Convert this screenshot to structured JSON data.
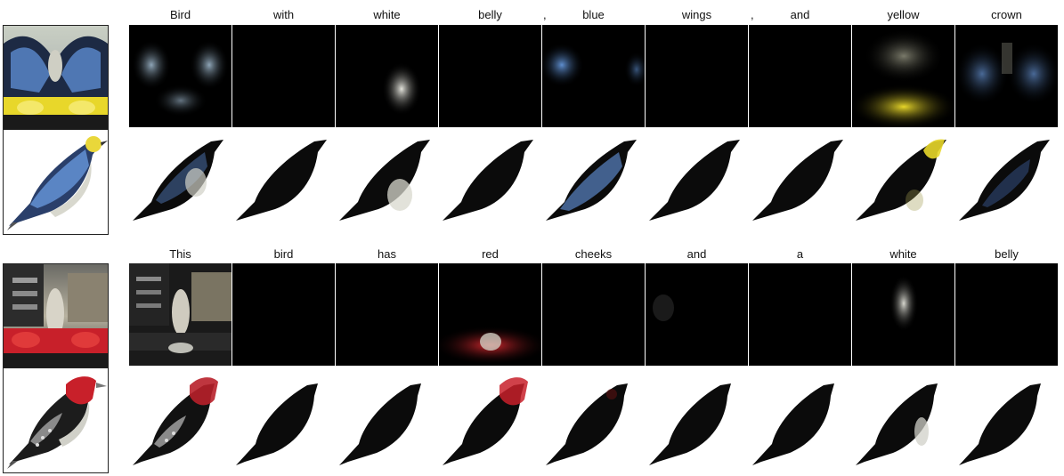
{
  "examples": [
    {
      "words": [
        "Bird",
        "with",
        "white",
        "belly",
        "blue",
        "wings",
        "and",
        "yellow",
        "crown"
      ],
      "comma_after": [
        ",",
        ","
      ],
      "colors": {
        "wing": "#5578a8",
        "belly": "#d9d9d2",
        "crown": "#e8d430",
        "body": "#0b0b0b"
      }
    },
    {
      "words": [
        "This",
        "bird",
        "has",
        "red",
        "cheeks",
        "and",
        "a",
        "white",
        "belly"
      ],
      "colors": {
        "head": "#c8202a",
        "belly": "#d0d0c8",
        "body": "#0b0b0b"
      }
    }
  ]
}
